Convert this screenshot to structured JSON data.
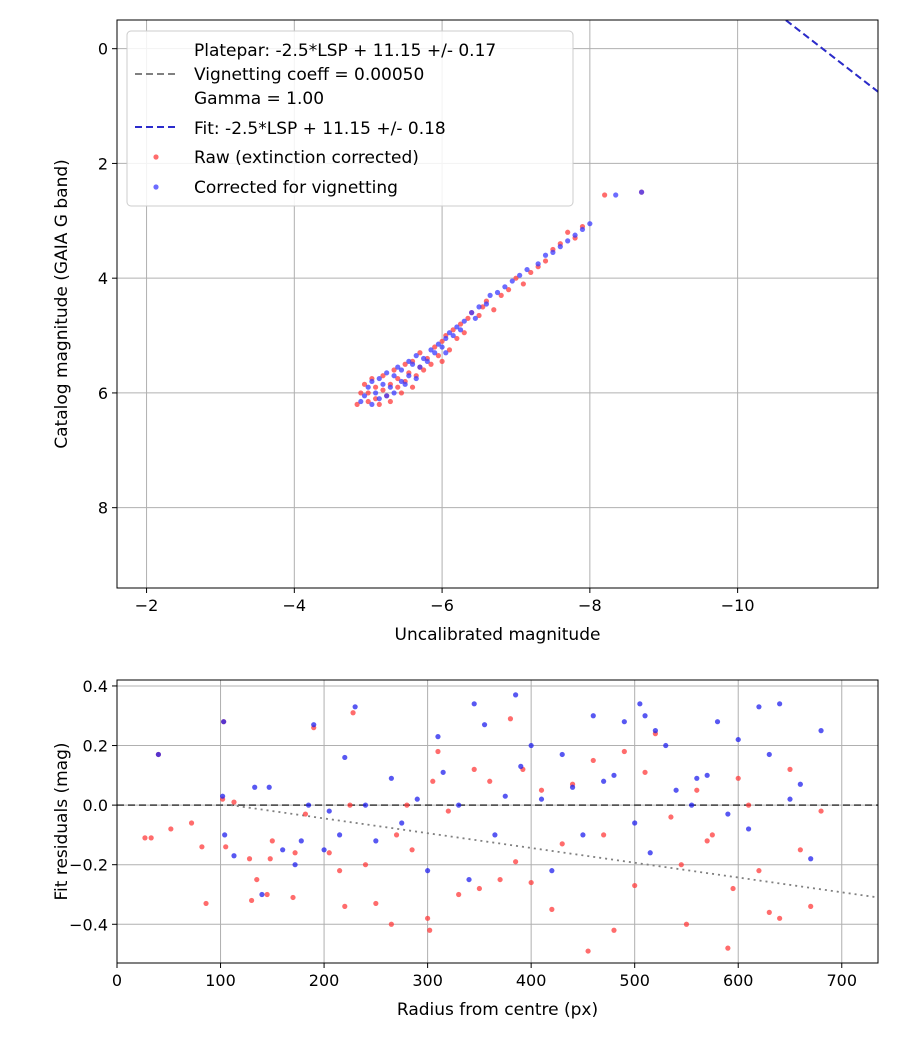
{
  "chart_data": [
    {
      "type": "scatter",
      "xlabel": "Uncalibrated magnitude",
      "ylabel": "Catalog magnitude (GAIA G band)",
      "xlim": [
        -1.6,
        -11.9
      ],
      "ylim": [
        9.4,
        -0.5
      ],
      "y_inverted": true,
      "x_inverted": true,
      "x_ticks": [
        -2,
        -4,
        -6,
        -8,
        -10
      ],
      "x_tick_labels": [
        "−2",
        "−4",
        "−6",
        "−8",
        "−10"
      ],
      "y_ticks": [
        0,
        2,
        4,
        6,
        8
      ],
      "y_tick_labels": [
        "0",
        "2",
        "4",
        "6",
        "8"
      ],
      "grid": true,
      "legend_placement": "upper-left",
      "legend": [
        {
          "label": "Platepar: -2.5*LSP + 11.15 +/- 0.17",
          "kind": "none"
        },
        {
          "label": "Vignetting coeff = 0.00050",
          "kind": "dashed-line",
          "color": "#808080"
        },
        {
          "label": "Gamma = 1.00",
          "kind": "none"
        },
        {
          "label": "Fit: -2.5*LSP + 11.15 +/- 0.18",
          "kind": "dashed-line",
          "color": "#2b2bcc"
        },
        {
          "label": "Raw (extinction corrected)",
          "kind": "marker",
          "color": "#ff3b3b"
        },
        {
          "label": "Corrected for vignetting",
          "kind": "marker",
          "color": "#3b3bff"
        }
      ],
      "lines": [
        {
          "name": "platepar",
          "slope": -1,
          "intercept": -11.15,
          "color": "#808080",
          "style": "dashed"
        },
        {
          "name": "fit",
          "slope": -1,
          "intercept": -11.15,
          "color": "#2b2bcc",
          "style": "dashed"
        }
      ],
      "series": [
        {
          "color": "#ff3b3b",
          "x": [
            -4.85,
            -4.9,
            -4.95,
            -5.0,
            -5.0,
            -5.05,
            -5.1,
            -5.1,
            -5.15,
            -5.2,
            -5.2,
            -5.25,
            -5.3,
            -5.3,
            -5.35,
            -5.4,
            -5.4,
            -5.45,
            -5.5,
            -5.5,
            -5.55,
            -5.6,
            -5.6,
            -5.65,
            -5.7,
            -5.7,
            -5.75,
            -5.8,
            -5.85,
            -5.9,
            -5.95,
            -6.0,
            -6.0,
            -6.05,
            -6.1,
            -6.15,
            -6.2,
            -6.25,
            -6.3,
            -6.35,
            -6.4,
            -6.5,
            -6.55,
            -6.6,
            -6.7,
            -6.8,
            -6.9,
            -7.0,
            -7.1,
            -7.2,
            -7.3,
            -7.4,
            -7.5,
            -7.6,
            -7.7,
            -7.8,
            -7.9,
            -8.2,
            -8.7
          ],
          "y": [
            6.2,
            6.0,
            5.85,
            6.15,
            6.0,
            5.75,
            6.1,
            5.9,
            6.2,
            5.95,
            5.7,
            6.05,
            5.85,
            6.15,
            5.6,
            5.9,
            5.75,
            6.0,
            5.5,
            5.8,
            5.65,
            5.9,
            5.45,
            5.7,
            5.55,
            5.3,
            5.6,
            5.4,
            5.5,
            5.2,
            5.35,
            5.1,
            5.45,
            5.0,
            5.25,
            4.9,
            5.05,
            4.8,
            4.95,
            4.7,
            4.6,
            4.65,
            4.5,
            4.4,
            4.55,
            4.3,
            4.2,
            4.0,
            4.1,
            3.9,
            3.8,
            3.7,
            3.5,
            3.4,
            3.2,
            3.3,
            3.1,
            2.55,
            2.5
          ]
        },
        {
          "color": "#3b3bff",
          "x": [
            -4.9,
            -4.95,
            -5.0,
            -5.05,
            -5.05,
            -5.1,
            -5.15,
            -5.15,
            -5.2,
            -5.25,
            -5.25,
            -5.3,
            -5.35,
            -5.35,
            -5.4,
            -5.45,
            -5.45,
            -5.5,
            -5.55,
            -5.55,
            -5.6,
            -5.65,
            -5.65,
            -5.7,
            -5.75,
            -5.8,
            -5.85,
            -5.9,
            -5.95,
            -6.0,
            -6.05,
            -6.05,
            -6.1,
            -6.15,
            -6.2,
            -6.25,
            -6.3,
            -6.4,
            -6.45,
            -6.5,
            -6.6,
            -6.65,
            -6.75,
            -6.85,
            -6.95,
            -7.05,
            -7.15,
            -7.3,
            -7.4,
            -7.5,
            -7.6,
            -7.7,
            -7.8,
            -7.9,
            -8.0,
            -8.35,
            -8.7
          ],
          "y": [
            6.15,
            6.05,
            5.9,
            6.2,
            5.8,
            6.0,
            5.75,
            6.1,
            5.85,
            6.05,
            5.65,
            5.9,
            5.7,
            6.0,
            5.55,
            5.8,
            5.6,
            5.85,
            5.45,
            5.7,
            5.5,
            5.75,
            5.35,
            5.55,
            5.4,
            5.45,
            5.25,
            5.3,
            5.15,
            5.2,
            5.05,
            5.3,
            4.95,
            5.0,
            4.85,
            4.9,
            4.75,
            4.6,
            4.7,
            4.5,
            4.45,
            4.3,
            4.25,
            4.15,
            4.05,
            3.95,
            3.85,
            3.75,
            3.6,
            3.55,
            3.45,
            3.35,
            3.25,
            3.15,
            3.05,
            2.55,
            2.5
          ]
        }
      ]
    },
    {
      "type": "scatter",
      "xlabel": "Radius from centre (px)",
      "ylabel": "Fit residuals (mag)",
      "xlim": [
        0,
        735
      ],
      "ylim": [
        -0.53,
        0.42
      ],
      "x_ticks": [
        0,
        100,
        200,
        300,
        400,
        500,
        600,
        700
      ],
      "x_tick_labels": [
        "0",
        "100",
        "200",
        "300",
        "400",
        "500",
        "600",
        "700"
      ],
      "y_ticks": [
        -0.4,
        -0.2,
        0.0,
        0.2,
        0.4
      ],
      "y_tick_labels": [
        "−0.4",
        "−0.2",
        "0.0",
        "0.2",
        "0.4"
      ],
      "grid": true,
      "lines": [
        {
          "name": "zero",
          "points": [
            [
              0,
              0
            ],
            [
              735,
              0
            ]
          ],
          "color": "#555555",
          "style": "dashed"
        },
        {
          "name": "vignetting-trend",
          "points": [
            [
              110,
              0.0
            ],
            [
              735,
              -0.31
            ]
          ],
          "color": "#808080",
          "style": "dotted"
        }
      ],
      "series": [
        {
          "color": "#ff3b3b",
          "x": [
            27,
            33,
            40,
            52,
            72,
            82,
            86,
            102,
            103,
            105,
            113,
            128,
            130,
            135,
            145,
            148,
            150,
            170,
            172,
            182,
            190,
            205,
            215,
            220,
            225,
            228,
            240,
            250,
            265,
            270,
            280,
            285,
            300,
            302,
            305,
            310,
            320,
            330,
            345,
            350,
            360,
            370,
            380,
            385,
            392,
            400,
            410,
            420,
            430,
            440,
            455,
            460,
            470,
            480,
            490,
            500,
            510,
            520,
            535,
            545,
            550,
            560,
            570,
            575,
            590,
            595,
            600,
            610,
            620,
            630,
            640,
            650,
            660,
            670,
            680
          ],
          "x2": [],
          "y": [
            -0.11,
            -0.11,
            0.17,
            -0.08,
            -0.06,
            -0.14,
            -0.33,
            0.02,
            0.28,
            -0.14,
            0.01,
            -0.18,
            -0.32,
            -0.25,
            -0.3,
            -0.18,
            -0.12,
            -0.31,
            -0.16,
            -0.03,
            0.26,
            -0.16,
            -0.22,
            -0.34,
            0.0,
            0.31,
            -0.2,
            -0.33,
            -0.4,
            -0.1,
            0.0,
            -0.15,
            -0.38,
            -0.42,
            0.08,
            0.18,
            -0.02,
            -0.3,
            0.12,
            -0.28,
            0.08,
            -0.25,
            0.29,
            -0.19,
            0.12,
            -0.26,
            0.05,
            -0.35,
            -0.13,
            0.07,
            -0.49,
            0.15,
            -0.1,
            -0.42,
            0.18,
            -0.27,
            0.11,
            0.24,
            -0.04,
            -0.2,
            -0.4,
            0.05,
            -0.12,
            -0.1,
            -0.48,
            -0.28,
            0.09,
            0.0,
            -0.22,
            -0.36,
            -0.38,
            0.12,
            -0.15,
            -0.34,
            -0.02
          ]
        },
        {
          "color": "#2020ee",
          "x": [
            40,
            102,
            103,
            104,
            113,
            133,
            140,
            147,
            160,
            172,
            178,
            185,
            190,
            200,
            205,
            215,
            220,
            230,
            240,
            250,
            265,
            275,
            290,
            300,
            310,
            315,
            330,
            340,
            345,
            355,
            365,
            375,
            385,
            390,
            400,
            410,
            420,
            430,
            440,
            450,
            460,
            470,
            480,
            490,
            500,
            505,
            510,
            515,
            520,
            530,
            540,
            555,
            560,
            570,
            580,
            590,
            600,
            610,
            620,
            630,
            640,
            650,
            660,
            670,
            680
          ],
          "y": [
            0.17,
            0.03,
            0.28,
            -0.1,
            -0.17,
            0.06,
            -0.3,
            0.06,
            -0.15,
            -0.2,
            -0.12,
            0.0,
            0.27,
            -0.15,
            -0.02,
            -0.1,
            0.16,
            0.33,
            0.0,
            -0.12,
            0.09,
            -0.06,
            0.02,
            -0.22,
            0.23,
            0.11,
            0.0,
            -0.25,
            0.34,
            0.27,
            -0.1,
            0.03,
            0.37,
            0.13,
            0.2,
            0.02,
            -0.22,
            0.17,
            0.06,
            -0.1,
            0.3,
            0.08,
            0.1,
            0.28,
            -0.06,
            0.34,
            0.3,
            -0.16,
            0.25,
            0.2,
            0.05,
            0.0,
            0.09,
            0.1,
            0.28,
            -0.03,
            0.22,
            -0.08,
            0.33,
            0.17,
            0.34,
            0.02,
            0.07,
            -0.18,
            0.25
          ]
        }
      ]
    }
  ]
}
